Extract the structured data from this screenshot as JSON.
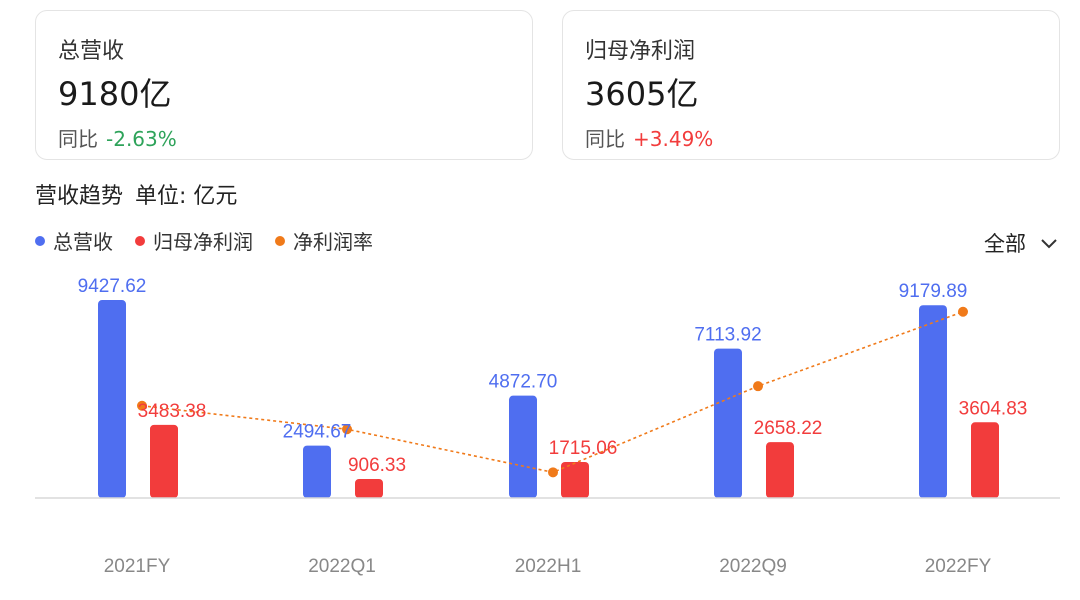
{
  "cards": [
    {
      "label": "总营收",
      "value": "9180亿",
      "change_label": "同比",
      "change": "-2.63%",
      "change_color": "#2ea35a"
    },
    {
      "label": "归母净利润",
      "value": "3605亿",
      "change_label": "同比",
      "change": "+3.49%",
      "change_color": "#f23c3c"
    }
  ],
  "trend": {
    "title": "营收趋势",
    "unit": "单位: 亿元"
  },
  "legend": [
    {
      "name": "总营收",
      "color": "#4f6ef0"
    },
    {
      "name": "归母净利润",
      "color": "#f23c3c"
    },
    {
      "name": "净利润率",
      "color": "#f07a1a"
    }
  ],
  "filter": {
    "label": "全部"
  },
  "chart_data": {
    "type": "bar",
    "categories": [
      "2021FY",
      "2022Q1",
      "2022H1",
      "2022Q9",
      "2022FY"
    ],
    "series": [
      {
        "name": "总营收",
        "type": "bar",
        "color": "#4f6ef0",
        "values": [
          9427.62,
          2494.67,
          4872.7,
          7113.92,
          9179.89
        ],
        "labels": [
          "9427.62",
          "2494.67",
          "4872.70",
          "7113.92",
          "9179.89"
        ]
      },
      {
        "name": "归母净利润",
        "type": "bar",
        "color": "#f23c3c",
        "values": [
          3483.38,
          906.33,
          1715.06,
          2658.22,
          3604.83
        ],
        "labels": [
          "3483.38",
          "906.33",
          "1715.06",
          "2658.22",
          "3604.83"
        ]
      },
      {
        "name": "净利润率",
        "type": "line",
        "color": "#f07a1a",
        "values": [
          36.9,
          36.3,
          35.2,
          37.4,
          39.3
        ]
      }
    ],
    "ylim": [
      0,
      10000
    ],
    "rate_ylim": [
      34.8,
      39.6
    ]
  }
}
